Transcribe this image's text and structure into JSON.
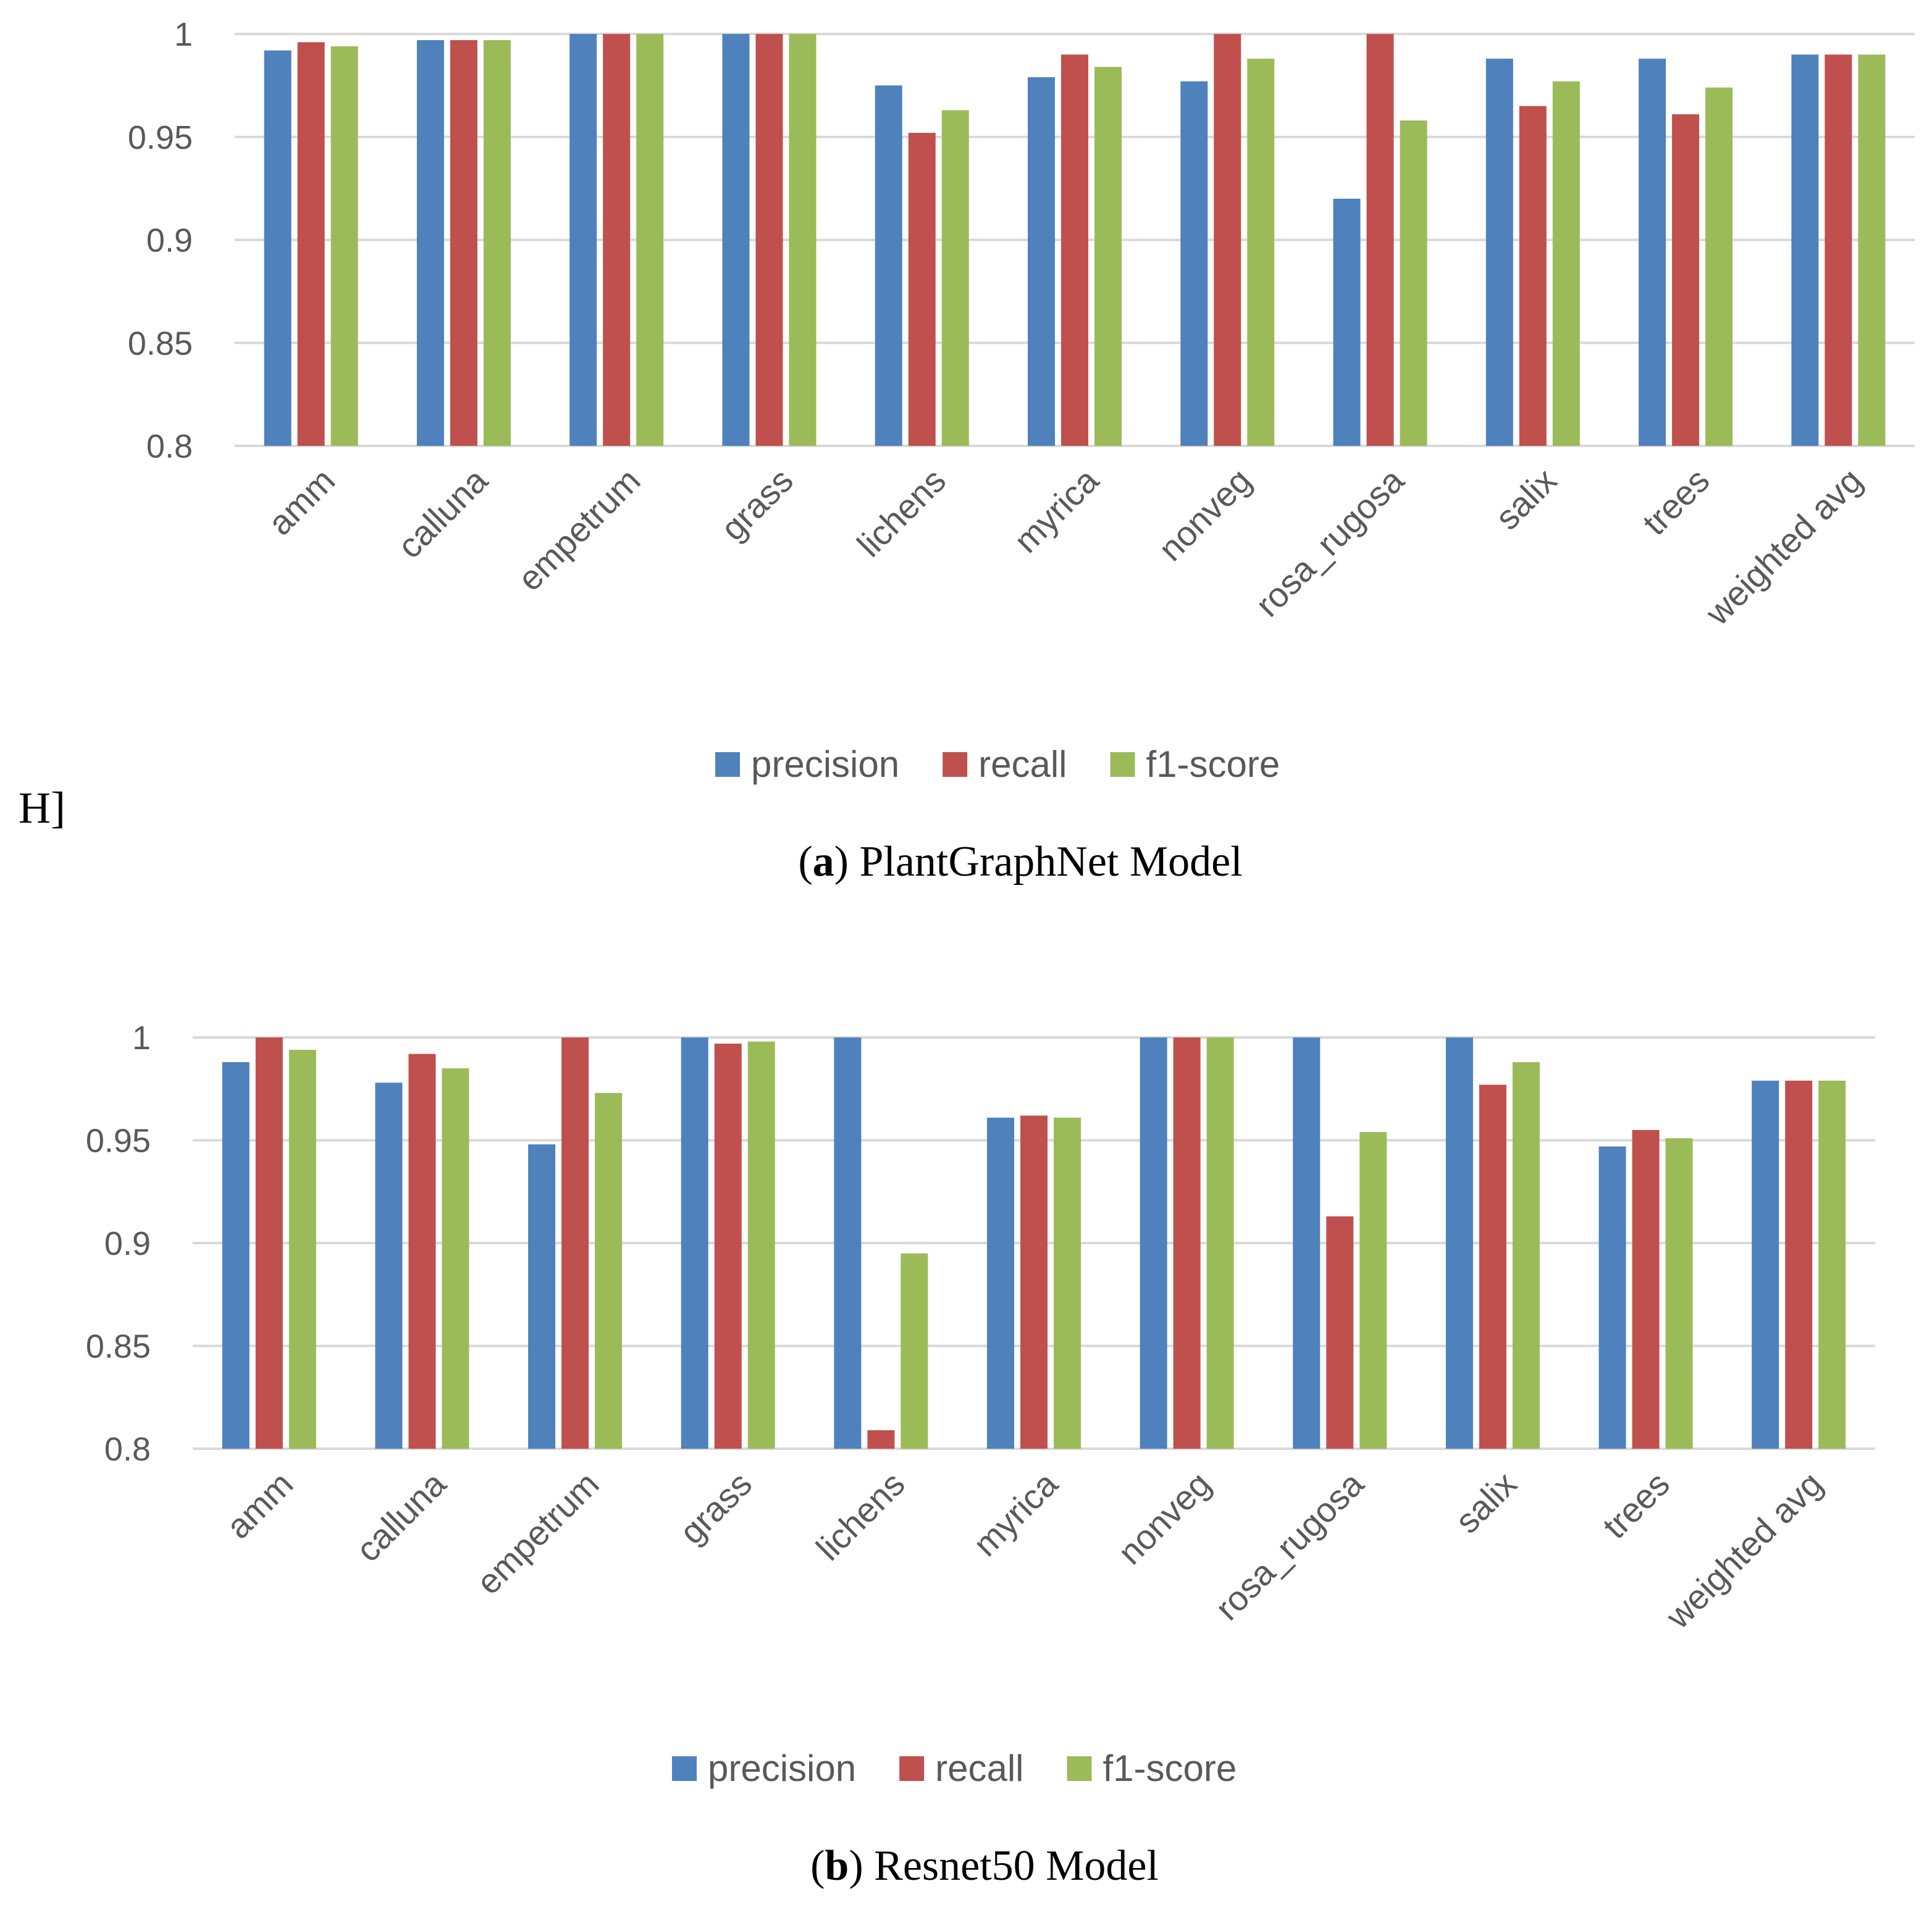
{
  "stray_text": "H]",
  "series_colors": {
    "precision": "#4f81bd",
    "recall": "#c0504d",
    "f1-score": "#9bbb59"
  },
  "chart_data": [
    {
      "type": "bar",
      "caption_letter": "a",
      "caption_text": "PlantGraphNet Model",
      "categories": [
        "amm",
        "calluna",
        "empetrum",
        "grass",
        "lichens",
        "myrica",
        "nonveg",
        "rosa_rugosa",
        "salix",
        "trees",
        "weighted avg"
      ],
      "series": [
        {
          "name": "precision",
          "values": [
            0.992,
            0.997,
            1.0,
            1.0,
            0.975,
            0.979,
            0.977,
            0.92,
            0.988,
            0.988,
            0.99
          ]
        },
        {
          "name": "recall",
          "values": [
            0.996,
            0.997,
            1.0,
            1.0,
            0.952,
            0.99,
            1.0,
            1.0,
            0.965,
            0.961,
            0.99
          ]
        },
        {
          "name": "f1-score",
          "values": [
            0.994,
            0.997,
            1.0,
            1.0,
            0.963,
            0.984,
            0.988,
            0.958,
            0.977,
            0.974,
            0.99
          ]
        }
      ],
      "ylim": [
        0.8,
        1.0
      ],
      "yticks": [
        "0.8",
        "0.85",
        "0.9",
        "0.95",
        "1"
      ],
      "ytick_values": [
        0.8,
        0.85,
        0.9,
        0.95,
        1.0
      ],
      "grid": true,
      "legend_position": "bottom-center",
      "xlabel": "",
      "ylabel": ""
    },
    {
      "type": "bar",
      "caption_letter": "b",
      "caption_text": "Resnet50 Model",
      "categories": [
        "amm",
        "calluna",
        "empetrum",
        "grass",
        "lichens",
        "myrica",
        "nonveg",
        "rosa_rugosa",
        "salix",
        "trees",
        "weighted avg"
      ],
      "series": [
        {
          "name": "precision",
          "values": [
            0.988,
            0.978,
            0.948,
            1.0,
            1.0,
            0.961,
            1.0,
            1.0,
            1.0,
            0.947,
            0.979
          ]
        },
        {
          "name": "recall",
          "values": [
            1.0,
            0.992,
            1.0,
            0.997,
            0.809,
            0.962,
            1.0,
            0.913,
            0.977,
            0.955,
            0.979
          ]
        },
        {
          "name": "f1-score",
          "values": [
            0.994,
            0.985,
            0.973,
            0.998,
            0.895,
            0.961,
            1.0,
            0.954,
            0.988,
            0.951,
            0.979
          ]
        }
      ],
      "ylim": [
        0.8,
        1.0
      ],
      "yticks": [
        "0.8",
        "0.85",
        "0.9",
        "0.95",
        "1"
      ],
      "ytick_values": [
        0.8,
        0.85,
        0.9,
        0.95,
        1.0
      ],
      "grid": true,
      "legend_position": "bottom-center",
      "xlabel": "",
      "ylabel": ""
    }
  ]
}
